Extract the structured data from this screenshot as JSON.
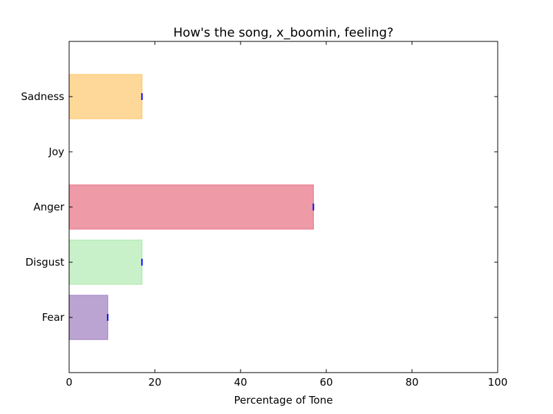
{
  "chart_data": {
    "type": "bar",
    "orientation": "horizontal",
    "title": "How's the song, x_boomin, feeling?",
    "xlabel": "Percentage of Tone",
    "ylabel": "",
    "xlim": [
      0,
      100
    ],
    "xticks": [
      0,
      20,
      40,
      60,
      80,
      100
    ],
    "categories": [
      "Fear",
      "Disgust",
      "Anger",
      "Joy",
      "Sadness"
    ],
    "values": [
      9,
      17,
      57,
      0,
      17
    ],
    "colors": [
      "#bba4d1",
      "#c9f1c9",
      "#ee9aa7",
      "#ffffff",
      "#fed898"
    ],
    "edge_colors": [
      "#a585c4",
      "#aee8ae",
      "#e87c90",
      "#ffffff",
      "#fec973"
    ],
    "error_marker_color": "#0000ff",
    "grid": false,
    "legend": "none"
  }
}
